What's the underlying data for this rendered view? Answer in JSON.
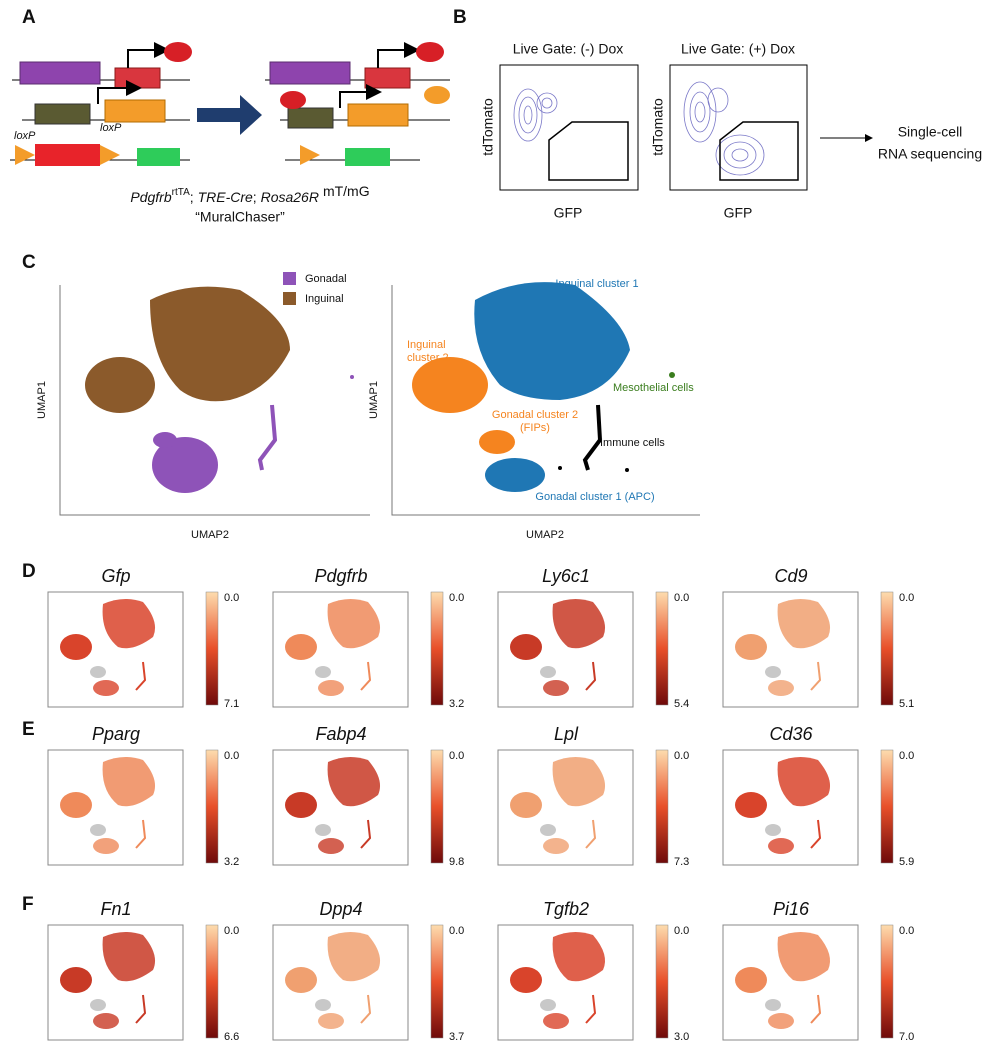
{
  "panel_a": {
    "letter": "A",
    "loxp": [
      "loxP",
      "loxP"
    ],
    "genotype": {
      "gene1": "Pdgfrb",
      "gene1_sup": "rtTA",
      "sep1": "; ",
      "gene2": "TRE-Cre",
      "sep2": "; ",
      "gene3": "Rosa26R",
      "gene3_sup": "mT/mG"
    },
    "nickname": "“MuralChaser”"
  },
  "panel_b": {
    "letter": "B",
    "plots": [
      {
        "title": "Live Gate: (-) Dox",
        "y_label": "tdTomato",
        "x_label": "GFP"
      },
      {
        "title": "Live Gate: (+) Dox",
        "y_label": "tdTomato",
        "x_label": "GFP"
      }
    ],
    "result": [
      "Single-cell",
      "RNA sequencing"
    ]
  },
  "panel_c": {
    "letter": "C",
    "legend": [
      "Gonadal",
      "Inguinal"
    ],
    "axes": [
      {
        "y_label": "UMAP1",
        "x_label": "UMAP2"
      },
      {
        "y_label": "UMAP1",
        "x_label": "UMAP2"
      }
    ],
    "clusters": {
      "inguinal_1": [
        "Inguinal  cluster 1"
      ],
      "inguinal_2": [
        "Inguinal",
        "cluster 2"
      ],
      "mesothelial": [
        "Mesothelial cells"
      ],
      "gonadal_2": [
        "Gonadal cluster 2",
        "(FIPs)"
      ],
      "immune": [
        "Immune cells"
      ],
      "gonadal_1": [
        "Gonadal cluster 1 (APC)"
      ]
    }
  },
  "feature_panels": [
    {
      "letter": "D",
      "genes": [
        {
          "name": "Gfp",
          "min": "0.0",
          "max": "7.1"
        },
        {
          "name": "Pdgfrb",
          "min": "0.0",
          "max": "3.2"
        },
        {
          "name": "Ly6c1",
          "min": "0.0",
          "max": "5.4"
        },
        {
          "name": "Cd9",
          "min": "0.0",
          "max": "5.1"
        }
      ]
    },
    {
      "letter": "E",
      "genes": [
        {
          "name": "Pparg",
          "min": "0.0",
          "max": "3.2"
        },
        {
          "name": "Fabp4",
          "min": "0.0",
          "max": "9.8"
        },
        {
          "name": "Lpl",
          "min": "0.0",
          "max": "7.3"
        },
        {
          "name": "Cd36",
          "min": "0.0",
          "max": "5.9"
        }
      ]
    },
    {
      "letter": "F",
      "genes": [
        {
          "name": "Fn1",
          "min": "0.0",
          "max": "6.6"
        },
        {
          "name": "Dpp4",
          "min": "0.0",
          "max": "3.7"
        },
        {
          "name": "Tgfb2",
          "min": "0.0",
          "max": "3.0"
        },
        {
          "name": "Pi16",
          "min": "0.0",
          "max": "7.0"
        }
      ]
    }
  ]
}
